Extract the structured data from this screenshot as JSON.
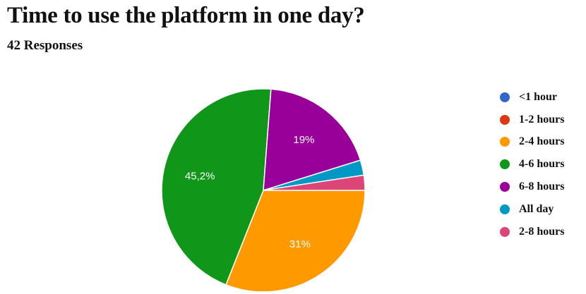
{
  "title": "Time to use the platform in one day?",
  "subtitle": "42 Responses",
  "chart_data": {
    "type": "pie",
    "title": "Time to use the platform in one day?",
    "subtitle": "42 Responses",
    "legend_position": "right",
    "categories": [
      "<1 hour",
      "1-2 hours",
      "2-4 hours",
      "4-6 hours",
      "6-8 hours",
      "All day",
      "2-8 hours"
    ],
    "values": [
      0,
      0,
      31,
      45.2,
      19,
      2.4,
      2.4
    ],
    "colors": [
      "#3366cc",
      "#dc3912",
      "#ff9900",
      "#109618",
      "#990099",
      "#0099c6",
      "#dd4477"
    ],
    "data_labels": [
      "",
      "",
      "31%",
      "45,2%",
      "19%",
      "",
      ""
    ]
  }
}
